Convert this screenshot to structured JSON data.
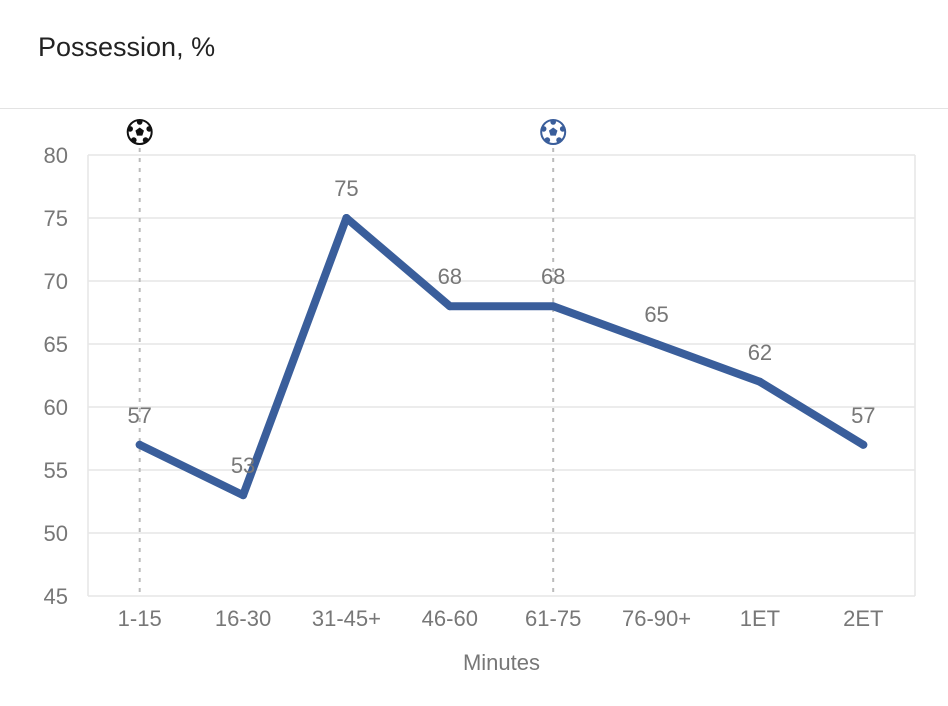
{
  "header": {
    "title": "Possession, %"
  },
  "colors": {
    "line": "#3a5e9b",
    "grid": "#e6e6e6",
    "event_line": "#bbbbbb",
    "text": "#777777"
  },
  "chart_data": {
    "type": "line",
    "title": "Possession, %",
    "xlabel": "Minutes",
    "ylabel": "",
    "categories": [
      "1-15",
      "16-30",
      "31-45+",
      "46-60",
      "61-75",
      "76-90+",
      "1ET",
      "2ET"
    ],
    "series": [
      {
        "values": [
          57,
          53,
          75,
          68,
          68,
          65,
          62,
          57
        ]
      }
    ],
    "ylim": [
      45,
      80
    ],
    "yticks": [
      45,
      50,
      55,
      60,
      65,
      70,
      75,
      80
    ],
    "grid": true,
    "events": [
      {
        "category": "1-15",
        "icon": "soccer-ball-icon",
        "color": "#111111"
      },
      {
        "category": "61-75",
        "icon": "soccer-ball-icon",
        "color": "#3a5e9b"
      }
    ]
  }
}
